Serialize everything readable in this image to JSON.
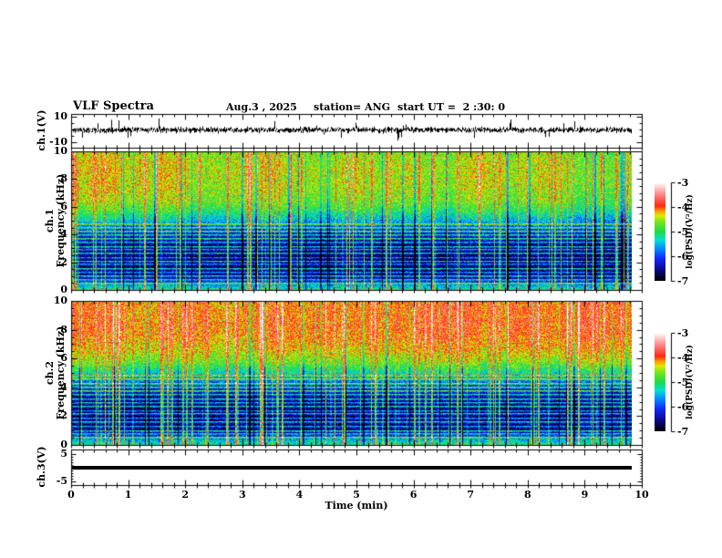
{
  "header": {
    "title": "VLF Spectra",
    "date": "Aug.3 , 2025",
    "station": "station= ANG",
    "start_ut": "start UT =  2 :30: 0"
  },
  "xaxis": {
    "title": "Time (min)",
    "range": [
      0,
      10
    ],
    "minor_step": 0.2,
    "tick_labels": [
      "0",
      "1",
      "2",
      "3",
      "4",
      "5",
      "6",
      "7",
      "8",
      "9",
      "10"
    ]
  },
  "colorbar": {
    "label": "log(PSD)(V²/Hz)",
    "range": [
      -7,
      -3
    ],
    "tick_labels": [
      "-3",
      "-4",
      "-5",
      "-6",
      "-7"
    ],
    "tick_values": [
      -3,
      -4,
      -5,
      -6,
      -7
    ],
    "stops": [
      [
        -7,
        "#000000"
      ],
      [
        -6.55,
        "#0a0a8c"
      ],
      [
        -6.1,
        "#1428ff"
      ],
      [
        -5.7,
        "#008cff"
      ],
      [
        -5.35,
        "#00e1d2"
      ],
      [
        -5.0,
        "#1edc46"
      ],
      [
        -4.6,
        "#78e61e"
      ],
      [
        -4.35,
        "#dceb00"
      ],
      [
        -4.15,
        "#ff9600"
      ],
      [
        -3.95,
        "#ff2814"
      ],
      [
        -3.55,
        "#ff7878"
      ],
      [
        -3.2,
        "#ffc8c8"
      ],
      [
        -3,
        "#ffffff"
      ]
    ]
  },
  "chart_data": [
    {
      "id": "ch1_wave",
      "type": "line",
      "ylabel": "ch.1(V)",
      "y_ticks": [
        "10",
        "-10"
      ],
      "y_tick_values": [
        10,
        -10
      ],
      "x_range_min": [
        0,
        9.84
      ],
      "summary": "broadband noise around 0 V (about ±1.5 V) with intermittent impulsive spikes reaching ±9 V over 0–9.8 min",
      "render": {
        "seed": 11,
        "noise_sigma": 1.15,
        "spike_prob": 0.012,
        "spike_amp_min": 3,
        "spike_amp_max": 9
      }
    },
    {
      "id": "ch1_spec",
      "type": "heatmap",
      "ylabel_line1": "ch.1",
      "ylabel_line2": "Frequency (kHz)",
      "y_ticks": [
        "0",
        "2",
        "4",
        "6",
        "8",
        "10"
      ],
      "y_tick_values": [
        0,
        2,
        4,
        6,
        8,
        10
      ],
      "y_range": [
        0,
        10
      ],
      "x_range_min": [
        0,
        9.84
      ],
      "z_range": [
        -7,
        -3
      ],
      "summary": "diffuse VLF hiss above ~5 kHz near 1e-4.5 V²/Hz (green/yellow) cut by dense impulsive sferic streaks (red); quiet dark band below ~4 kHz near 1e-6.6 crossed by narrow horizontal transmitter lines (green/cyan) and a brighter band near 0 kHz",
      "render": {
        "seed": 23,
        "pixel_noise": 0.27,
        "profile": [
          [
            0,
            -5.05
          ],
          [
            0.35,
            -5.55
          ],
          [
            0.9,
            -6.5
          ],
          [
            2,
            -6.7
          ],
          [
            3,
            -6.62
          ],
          [
            3.9,
            -6.35
          ],
          [
            4.5,
            -5.95
          ],
          [
            5.1,
            -5.4
          ],
          [
            5.8,
            -4.9
          ],
          [
            6.5,
            -4.6
          ],
          [
            7.5,
            -4.45
          ],
          [
            9,
            -4.4
          ],
          [
            10,
            -4.5
          ]
        ],
        "streak_prob": 0.1,
        "streak_boost_min": 0.5,
        "streak_boost_max": 2.0,
        "neg_streak_prob": 0.05,
        "neg_streak_boost": -1.8,
        "hf_attenuation": 0.55,
        "hlines": [
          [
            0.55,
            1.1
          ],
          [
            0.8,
            0.9
          ],
          [
            1.05,
            1.2
          ],
          [
            1.3,
            0.9
          ],
          [
            1.6,
            1.3
          ],
          [
            1.9,
            1.0
          ],
          [
            2.15,
            1.2
          ],
          [
            2.4,
            0.9
          ],
          [
            2.7,
            1.3
          ],
          [
            2.95,
            1.0
          ],
          [
            3.2,
            1.2
          ],
          [
            3.5,
            1.0
          ],
          [
            3.75,
            1.35
          ],
          [
            4.05,
            1.1
          ],
          [
            4.3,
            1.25
          ],
          [
            4.6,
            1.1
          ],
          [
            4.85,
            1.2
          ]
        ]
      }
    },
    {
      "id": "ch2_spec",
      "type": "heatmap",
      "ylabel_line1": "ch.2",
      "ylabel_line2": "Frequency (kHz)",
      "y_ticks": [
        "0",
        "2",
        "4",
        "6",
        "8",
        "10"
      ],
      "y_tick_values": [
        0,
        2,
        4,
        6,
        8,
        10
      ],
      "y_range": [
        0,
        10
      ],
      "x_range_min": [
        0,
        9.84
      ],
      "z_range": [
        -7,
        -3
      ],
      "summary": "stronger channel: intense emission above ~6.5 kHz near 1e-4 V²/Hz (red/orange) with yellow-green streaking, transition through green/cyan 4–6 kHz, dark quiet band below ~4 kHz with horizontal transmitter lines and bright band near 0 kHz",
      "render": {
        "seed": 57,
        "pixel_noise": 0.27,
        "profile": [
          [
            0,
            -5.0
          ],
          [
            0.35,
            -5.45
          ],
          [
            0.9,
            -6.45
          ],
          [
            2,
            -6.65
          ],
          [
            3,
            -6.55
          ],
          [
            3.9,
            -6.2
          ],
          [
            4.5,
            -5.7
          ],
          [
            5.1,
            -5.1
          ],
          [
            5.8,
            -4.55
          ],
          [
            6.6,
            -4.2
          ],
          [
            7.4,
            -4.0
          ],
          [
            8.4,
            -3.9
          ],
          [
            10,
            -3.95
          ]
        ],
        "streak_prob": 0.12,
        "streak_boost_min": 0.5,
        "streak_boost_max": 2.1,
        "neg_streak_prob": 0.05,
        "neg_streak_boost": -1.6,
        "hf_attenuation": 0.5,
        "hlines": [
          [
            0.55,
            1.15
          ],
          [
            0.8,
            0.95
          ],
          [
            1.05,
            1.25
          ],
          [
            1.35,
            0.95
          ],
          [
            1.65,
            1.3
          ],
          [
            1.9,
            1.0
          ],
          [
            2.2,
            1.25
          ],
          [
            2.45,
            0.95
          ],
          [
            2.75,
            1.3
          ],
          [
            3.0,
            1.05
          ],
          [
            3.25,
            1.2
          ],
          [
            3.55,
            1.05
          ],
          [
            3.8,
            1.35
          ],
          [
            4.1,
            1.15
          ],
          [
            4.35,
            1.25
          ],
          [
            4.65,
            1.1
          ],
          [
            4.9,
            1.2
          ]
        ]
      }
    },
    {
      "id": "ch3_wave",
      "type": "line",
      "ylabel": "ch.3(V)",
      "y_ticks": [
        "5",
        "-5"
      ],
      "y_tick_values": [
        5,
        -5
      ],
      "x_range_min": [
        0,
        9.84
      ],
      "summary": "flat trace at ~0 V for the whole record (channel inactive)",
      "render": {
        "value": 0,
        "thickness_px": 4
      }
    }
  ]
}
